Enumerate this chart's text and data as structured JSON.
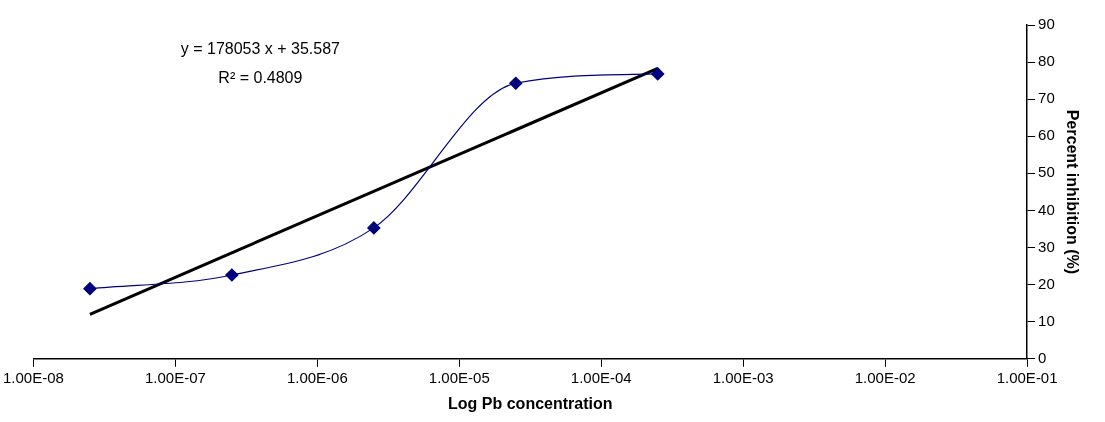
{
  "chart_data": {
    "type": "line",
    "xlabel": "Log Pb concentration",
    "ylabel": "Percent inhibition (%)",
    "x": [
      2.5e-08,
      2.5e-07,
      2.5e-06,
      2.5e-05,
      0.00025
    ],
    "series": [
      {
        "color": "#00007f",
        "values": [
          18.9,
          22.6,
          35.3,
          74.3,
          76.8
        ],
        "marker": "diamond"
      },
      {
        "type": "line",
        "color": "#000000",
        "x": [
          2.5e-08,
          0.00025
        ],
        "values": [
          12,
          78.3
        ],
        "marker": "none"
      }
    ],
    "log": "x",
    "xlim": [
      1e-08,
      0.1
    ],
    "xticks": [
      {
        "value": 1e-08,
        "label": "1.00E-08"
      },
      {
        "value": 1e-07,
        "label": "1.00E-07"
      },
      {
        "value": 1e-06,
        "label": "1.00E-06"
      },
      {
        "value": 1e-05,
        "label": "1.00E-05"
      },
      {
        "value": 0.0001,
        "label": "1.00E-04"
      },
      {
        "value": 0.001,
        "label": "1.00E-03"
      },
      {
        "value": 0.01,
        "label": "1.00E-02"
      },
      {
        "value": 0.1,
        "label": "1.00E-01"
      }
    ],
    "ylim": [
      0,
      90
    ],
    "yticks": [
      0,
      10,
      20,
      30,
      40,
      50,
      60,
      70,
      80,
      90
    ],
    "grid": false,
    "legend": false,
    "annotations": [
      "y = 178053 x + 35.587",
      "R² = 0.4809"
    ]
  }
}
